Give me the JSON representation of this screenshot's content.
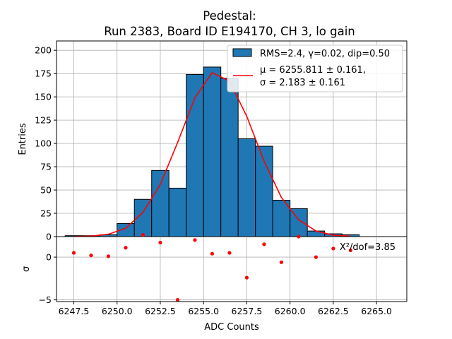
{
  "chart_data": [
    {
      "type": "bar",
      "title_line1": "Pedestal:",
      "title_line2": "Run 2383, Board ID E194170, CH 3, lo gain",
      "xlabel": "ADC Counts",
      "ylabel": "Entries",
      "xlim": [
        6246.5,
        6266.75
      ],
      "ylim": [
        0,
        210
      ],
      "grid": true,
      "legend_position": "top-right",
      "x_ticks": [
        "6247.5",
        "6250.0",
        "6252.5",
        "6255.0",
        "6257.5",
        "6260.0",
        "6262.5",
        "6265.0"
      ],
      "x_tick_values": [
        6247.5,
        6250.0,
        6252.5,
        6255.0,
        6257.5,
        6260.0,
        6262.5,
        6265.0
      ],
      "y_ticks": [
        "0",
        "25",
        "50",
        "75",
        "100",
        "125",
        "150",
        "175",
        "200"
      ],
      "y_tick_values": [
        0,
        25,
        50,
        75,
        100,
        125,
        150,
        175,
        200
      ],
      "bar_color": "#1f77b4",
      "fit_color": "#ff0000",
      "bins": {
        "edges": [
          6247,
          6248,
          6249,
          6250,
          6251,
          6252,
          6253,
          6254,
          6255,
          6256,
          6257,
          6258,
          6259,
          6260,
          6261,
          6262,
          6263,
          6264
        ],
        "counts": [
          1,
          1,
          2,
          14,
          40,
          71,
          52,
          174,
          182,
          170,
          105,
          97,
          39,
          30,
          6,
          3,
          2
        ]
      },
      "fit_curve": {
        "x": [
          6247.5,
          6248.5,
          6249.5,
          6250.5,
          6251.5,
          6252.5,
          6253.5,
          6254.5,
          6255.5,
          6256.5,
          6257.5,
          6258.5,
          6259.5,
          6260.5,
          6261.5,
          6262.5,
          6263.5
        ],
        "y": [
          0.1,
          0.5,
          2.5,
          9,
          26,
          56,
          101,
          149,
          176,
          167,
          129,
          81,
          42,
          18,
          6,
          1.5,
          0.4
        ]
      },
      "legend": {
        "hist_label": "RMS=2.4, γ=0.02, dip=0.50",
        "fit_label_line1": "μ = 6255.811 ± 0.161,",
        "fit_label_line2": "σ = 2.183 ± 0.161"
      }
    },
    {
      "type": "scatter",
      "ylabel": "σ",
      "ylim": [
        -5.2,
        2.4
      ],
      "y_ticks": [
        "0",
        "−5"
      ],
      "y_tick_values": [
        0,
        -5
      ],
      "annotation": "Χ²/dof=3.85",
      "point_color": "#ff0000",
      "x": [
        6247.5,
        6248.5,
        6249.5,
        6250.5,
        6251.5,
        6252.5,
        6253.5,
        6254.5,
        6255.5,
        6256.5,
        6257.5,
        6258.5,
        6259.5,
        6260.5,
        6261.5,
        6262.5,
        6263.5
      ],
      "y": [
        0.5,
        0.2,
        0.1,
        1.1,
        2.6,
        1.7,
        -5.0,
        2.0,
        0.4,
        0.5,
        -2.4,
        1.5,
        -0.6,
        2.4,
        0.0,
        1.0,
        0.8
      ]
    }
  ]
}
